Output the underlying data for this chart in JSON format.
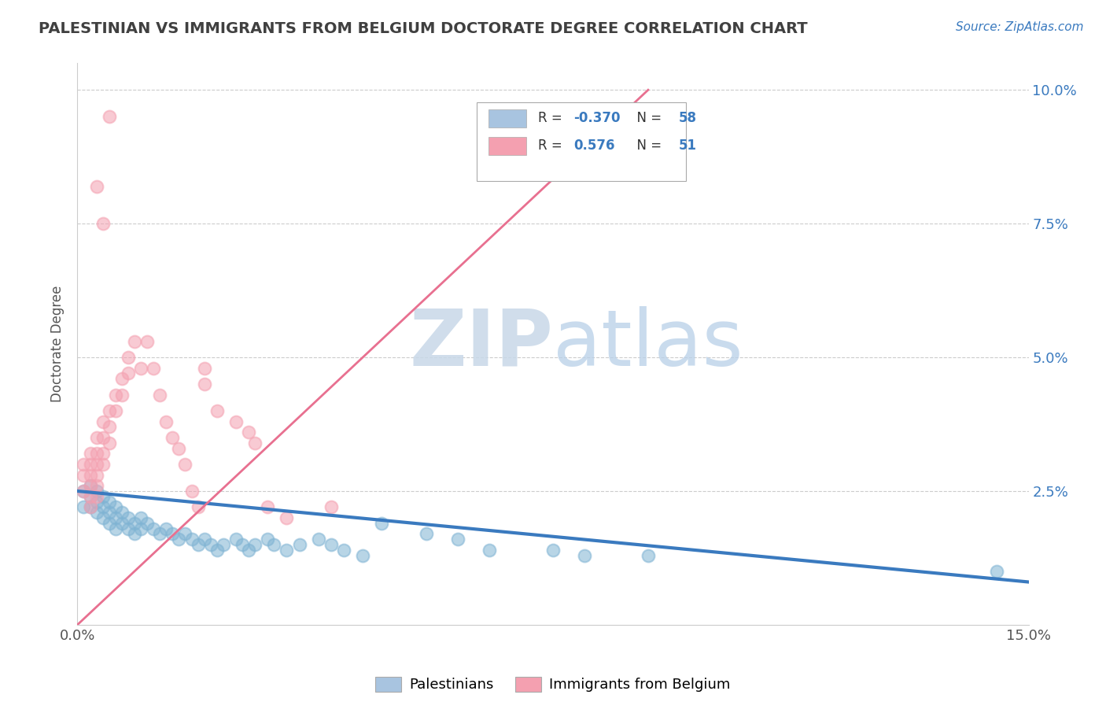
{
  "title": "PALESTINIAN VS IMMIGRANTS FROM BELGIUM DOCTORATE DEGREE CORRELATION CHART",
  "source_text": "Source: ZipAtlas.com",
  "ylabel": "Doctorate Degree",
  "xlim": [
    0.0,
    0.15
  ],
  "ylim": [
    0.0,
    0.105
  ],
  "background_color": "#ffffff",
  "grid_color": "#cccccc",
  "title_color": "#404040",
  "blue_scatter_color": "#7fb3d3",
  "pink_scatter_color": "#f4a0b0",
  "blue_line_color": "#3a7abf",
  "pink_line_color": "#e87090",
  "watermark_color": "#cde4f0",
  "legend_entries": [
    {
      "color": "#a8c4e0",
      "R": "-0.370",
      "N": "58",
      "label": "Palestinians"
    },
    {
      "color": "#f4a0b0",
      "R": "0.576",
      "N": "51",
      "label": "Immigrants from Belgium"
    }
  ],
  "blue_line": {
    "x0": 0.0,
    "y0": 0.025,
    "x1": 0.15,
    "y1": 0.008
  },
  "pink_line": {
    "x0": 0.0,
    "y0": 0.0,
    "x1": 0.09,
    "y1": 0.1
  },
  "palestinians": [
    [
      0.001,
      0.025
    ],
    [
      0.001,
      0.022
    ],
    [
      0.002,
      0.026
    ],
    [
      0.002,
      0.024
    ],
    [
      0.002,
      0.022
    ],
    [
      0.003,
      0.025
    ],
    [
      0.003,
      0.023
    ],
    [
      0.003,
      0.021
    ],
    [
      0.004,
      0.024
    ],
    [
      0.004,
      0.022
    ],
    [
      0.004,
      0.02
    ],
    [
      0.005,
      0.023
    ],
    [
      0.005,
      0.021
    ],
    [
      0.005,
      0.019
    ],
    [
      0.006,
      0.022
    ],
    [
      0.006,
      0.02
    ],
    [
      0.006,
      0.018
    ],
    [
      0.007,
      0.021
    ],
    [
      0.007,
      0.019
    ],
    [
      0.008,
      0.02
    ],
    [
      0.008,
      0.018
    ],
    [
      0.009,
      0.019
    ],
    [
      0.009,
      0.017
    ],
    [
      0.01,
      0.02
    ],
    [
      0.01,
      0.018
    ],
    [
      0.011,
      0.019
    ],
    [
      0.012,
      0.018
    ],
    [
      0.013,
      0.017
    ],
    [
      0.014,
      0.018
    ],
    [
      0.015,
      0.017
    ],
    [
      0.016,
      0.016
    ],
    [
      0.017,
      0.017
    ],
    [
      0.018,
      0.016
    ],
    [
      0.019,
      0.015
    ],
    [
      0.02,
      0.016
    ],
    [
      0.021,
      0.015
    ],
    [
      0.022,
      0.014
    ],
    [
      0.023,
      0.015
    ],
    [
      0.025,
      0.016
    ],
    [
      0.026,
      0.015
    ],
    [
      0.027,
      0.014
    ],
    [
      0.028,
      0.015
    ],
    [
      0.03,
      0.016
    ],
    [
      0.031,
      0.015
    ],
    [
      0.033,
      0.014
    ],
    [
      0.035,
      0.015
    ],
    [
      0.038,
      0.016
    ],
    [
      0.04,
      0.015
    ],
    [
      0.042,
      0.014
    ],
    [
      0.045,
      0.013
    ],
    [
      0.048,
      0.019
    ],
    [
      0.055,
      0.017
    ],
    [
      0.06,
      0.016
    ],
    [
      0.065,
      0.014
    ],
    [
      0.075,
      0.014
    ],
    [
      0.08,
      0.013
    ],
    [
      0.09,
      0.013
    ],
    [
      0.145,
      0.01
    ]
  ],
  "belgians": [
    [
      0.001,
      0.03
    ],
    [
      0.001,
      0.028
    ],
    [
      0.001,
      0.025
    ],
    [
      0.002,
      0.032
    ],
    [
      0.002,
      0.03
    ],
    [
      0.002,
      0.028
    ],
    [
      0.002,
      0.026
    ],
    [
      0.002,
      0.024
    ],
    [
      0.002,
      0.022
    ],
    [
      0.003,
      0.035
    ],
    [
      0.003,
      0.032
    ],
    [
      0.003,
      0.03
    ],
    [
      0.003,
      0.028
    ],
    [
      0.003,
      0.026
    ],
    [
      0.003,
      0.024
    ],
    [
      0.004,
      0.038
    ],
    [
      0.004,
      0.035
    ],
    [
      0.004,
      0.032
    ],
    [
      0.004,
      0.03
    ],
    [
      0.005,
      0.04
    ],
    [
      0.005,
      0.037
    ],
    [
      0.005,
      0.034
    ],
    [
      0.006,
      0.043
    ],
    [
      0.006,
      0.04
    ],
    [
      0.007,
      0.046
    ],
    [
      0.007,
      0.043
    ],
    [
      0.008,
      0.05
    ],
    [
      0.008,
      0.047
    ],
    [
      0.009,
      0.053
    ],
    [
      0.01,
      0.048
    ],
    [
      0.011,
      0.053
    ],
    [
      0.012,
      0.048
    ],
    [
      0.013,
      0.043
    ],
    [
      0.014,
      0.038
    ],
    [
      0.015,
      0.035
    ],
    [
      0.016,
      0.033
    ],
    [
      0.017,
      0.03
    ],
    [
      0.018,
      0.025
    ],
    [
      0.019,
      0.022
    ],
    [
      0.02,
      0.045
    ],
    [
      0.022,
      0.04
    ],
    [
      0.025,
      0.038
    ],
    [
      0.027,
      0.036
    ],
    [
      0.028,
      0.034
    ],
    [
      0.03,
      0.022
    ],
    [
      0.033,
      0.02
    ],
    [
      0.04,
      0.022
    ],
    [
      0.003,
      0.082
    ],
    [
      0.004,
      0.075
    ],
    [
      0.005,
      0.095
    ],
    [
      0.02,
      0.048
    ]
  ]
}
